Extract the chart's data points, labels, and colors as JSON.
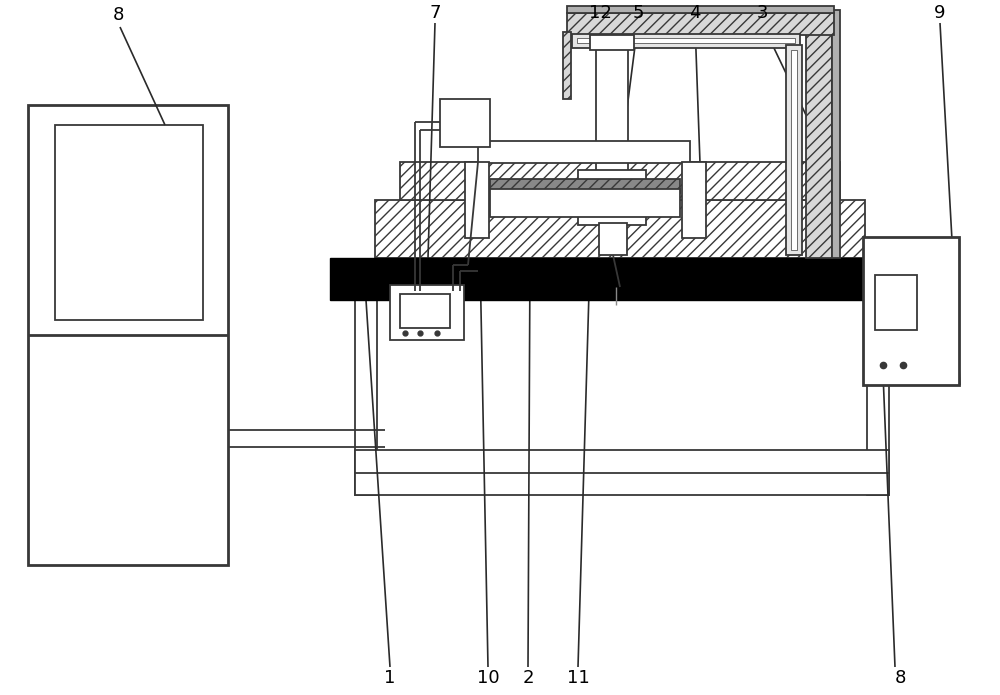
{
  "bg": "#ffffff",
  "lc": "#383838",
  "lw1": 1.3,
  "lw2": 2.0,
  "fig_w": 10.0,
  "fig_h": 6.95,
  "dpi": 100
}
